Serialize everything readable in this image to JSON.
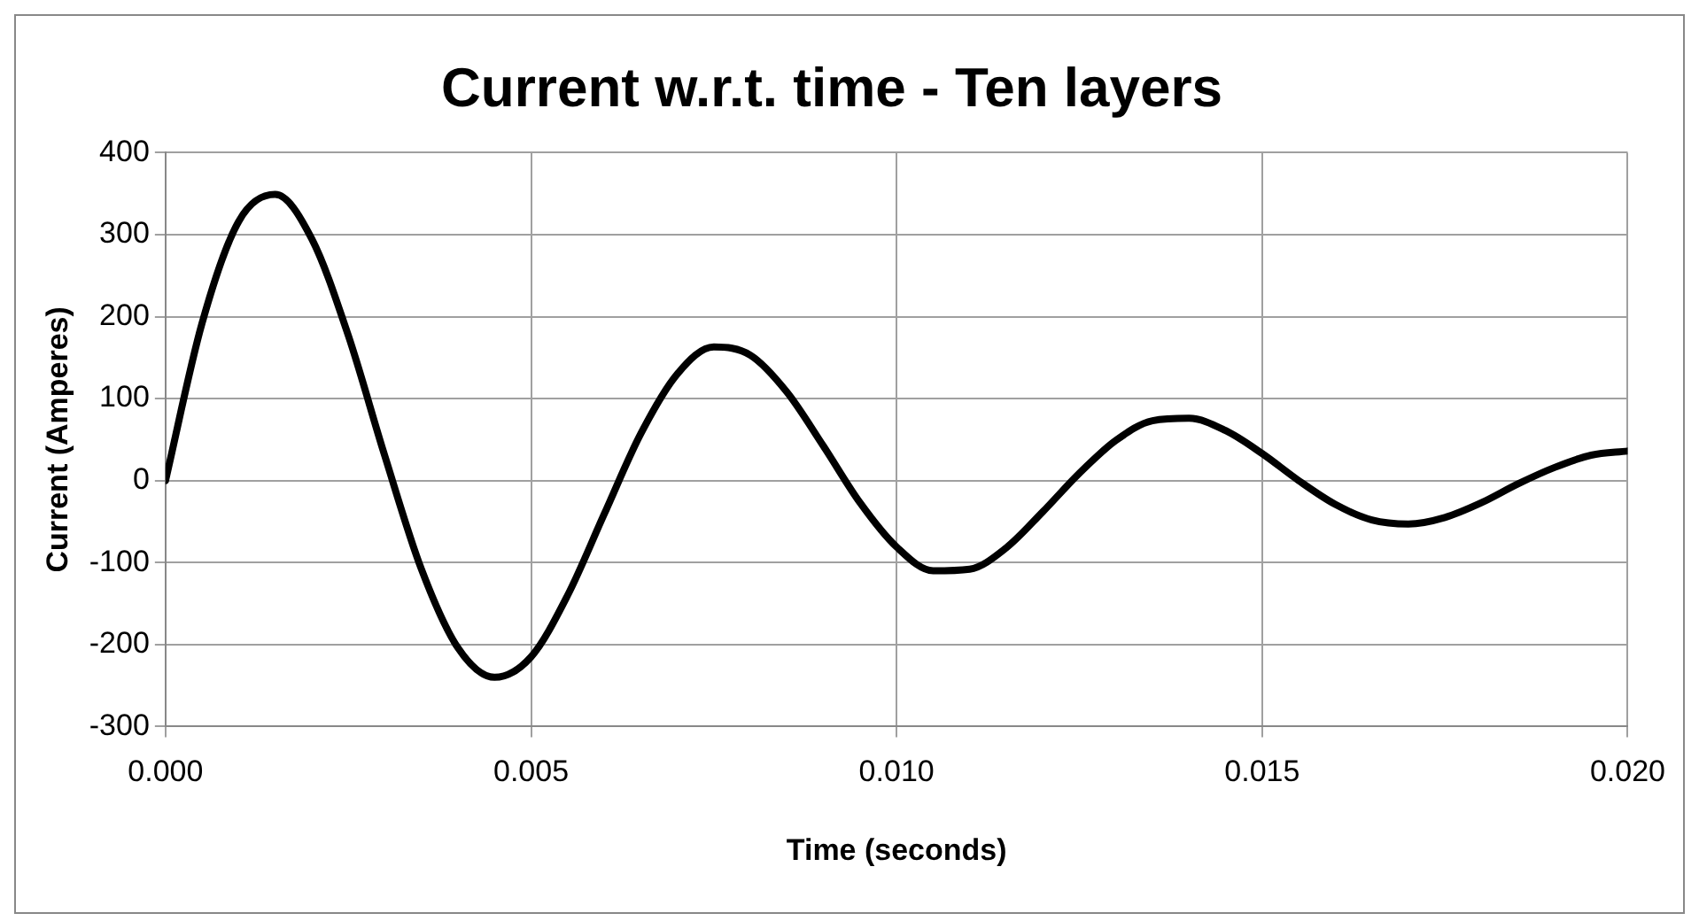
{
  "chart_data": {
    "type": "line",
    "title": "Current w.r.t. time - Ten layers",
    "xlabel": "Time (seconds)",
    "ylabel": "Current (Amperes)",
    "x": [
      0,
      0.0005,
      0.001,
      0.0015,
      0.002,
      0.0025,
      0.003,
      0.0035,
      0.004,
      0.0045,
      0.005,
      0.0055,
      0.006,
      0.0065,
      0.007,
      0.0075,
      0.008,
      0.0085,
      0.009,
      0.0095,
      0.01,
      0.0105,
      0.011,
      0.0115,
      0.012,
      0.0125,
      0.013,
      0.0135,
      0.014,
      0.0145,
      0.015,
      0.0155,
      0.016,
      0.0165,
      0.017,
      0.0175,
      0.018,
      0.0185,
      0.019,
      0.0195,
      0.02
    ],
    "series": [
      {
        "color": "#000000",
        "values": [
          0,
          192,
          316,
          349,
          295,
          177,
          30,
          -108,
          -204,
          -240,
          -215,
          -140,
          -41,
          57,
          130,
          163,
          153,
          108,
          42,
          -27,
          -81,
          -110,
          -108,
          -82,
          -38,
          9,
          49,
          73,
          76,
          61,
          33,
          0,
          -29,
          -48,
          -53,
          -45,
          -27,
          -4,
          16,
          31,
          36
        ]
      }
    ],
    "xlim": [
      0,
      0.02
    ],
    "xticks": [
      {
        "value": 0,
        "label": "0.000"
      },
      {
        "value": 0.005,
        "label": "0.005"
      },
      {
        "value": 0.01,
        "label": "0.010"
      },
      {
        "value": 0.015,
        "label": "0.015"
      },
      {
        "value": 0.02,
        "label": "0.020"
      }
    ],
    "ylim": [
      -300,
      400
    ],
    "yticks": [
      -300,
      -200,
      -100,
      0,
      100,
      200,
      300,
      400
    ],
    "grid": true,
    "legend": false,
    "marker": "none",
    "line_style": "solid"
  }
}
